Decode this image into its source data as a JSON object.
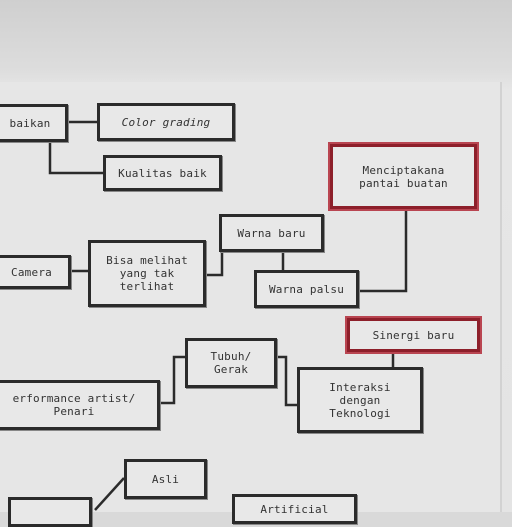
{
  "nodes": {
    "perbaikan": "baikan",
    "color_grading": "Color grading",
    "kualitas_baik": "Kualitas baik",
    "menciptakan": "Menciptakana\npantai buatan",
    "warna_baru": "Warna baru",
    "camera": "Camera",
    "bisa_melihat": "Bisa melihat\nyang tak\nterlihat",
    "warna_palsu": "Warna palsu",
    "sinergi_baru": "Sinergi baru",
    "tubuh_gerak": "Tubuh/\nGerak",
    "performance_artist": "erformance artist/\nPenari",
    "interaksi": "Interaksi\ndengan\nTeknologi",
    "asli": "Asli",
    "artificial": "Artificial"
  },
  "colors": {
    "box_border": "#2b2b2b",
    "highlight_border": "#8d1f2a"
  }
}
